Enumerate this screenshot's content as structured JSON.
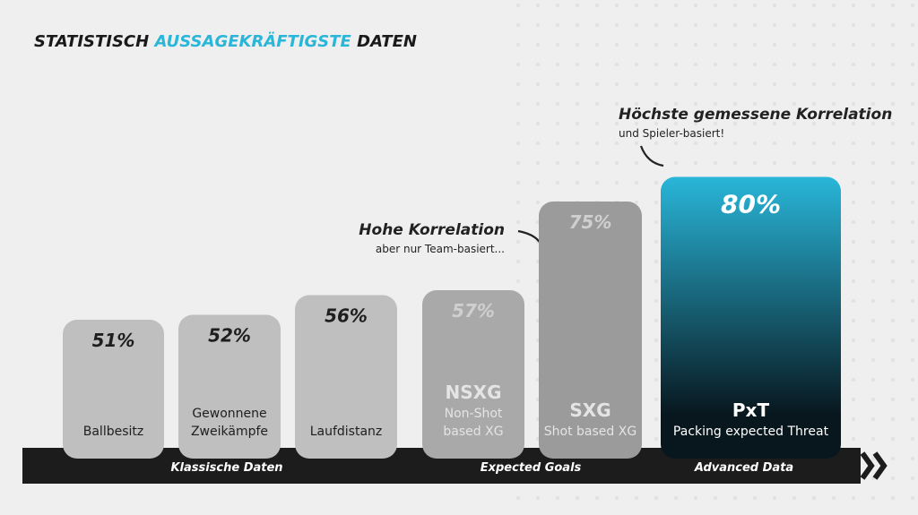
{
  "chart_data": {
    "type": "bar",
    "title": [
      "STATISTISCH",
      "AUSSAGEKRÄFTIGSTE",
      "DATEN"
    ],
    "title_colors": [
      "#1a1a1a",
      "#29b6d9",
      "#1a1a1a"
    ],
    "categories": [
      "Ballbesitz",
      "Gewonnene Zweikämpfe",
      "Laufdistanz",
      "Non-Shot based XG",
      "Shot based XG",
      "Packing expected Threat"
    ],
    "abbreviations": [
      null,
      null,
      null,
      "NSXG",
      "SXG",
      "PxT"
    ],
    "values": [
      51,
      52,
      56,
      57,
      75,
      80
    ],
    "value_labels": [
      "51%",
      "52%",
      "56%",
      "57%",
      "75%",
      "80%"
    ],
    "colors": [
      "#bfbfbf",
      "#bfbfbf",
      "#bfbfbf",
      "#a9a9a9",
      "#9b9b9b",
      "#29b6d9"
    ],
    "ylim": [
      25,
      85
    ],
    "groups": [
      "Klassische Daten",
      "Expected Goals",
      "Advanced Data"
    ],
    "annotations": [
      {
        "title": "Hohe Korrelation",
        "text": "aber nur Team-basiert..."
      },
      {
        "title": "Höchste gemessene Korrelation",
        "text": "und Spieler-basiert!"
      }
    ]
  }
}
